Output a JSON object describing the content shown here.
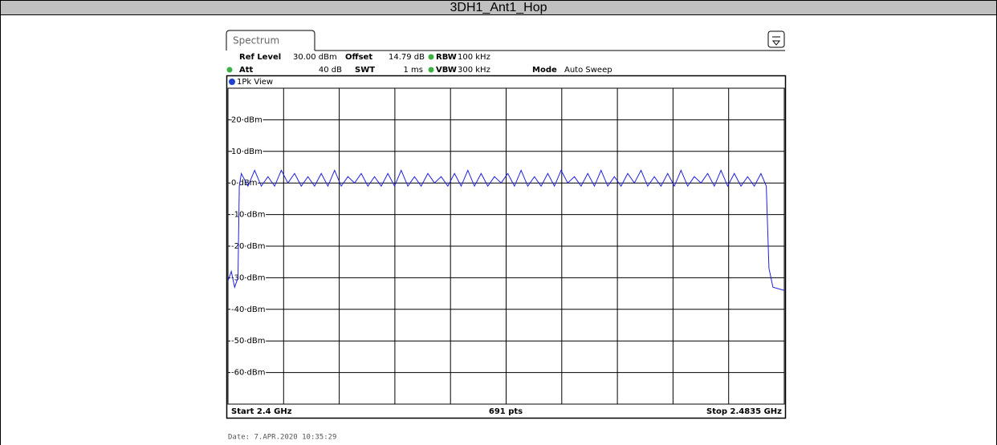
{
  "header": {
    "title": "3DH1_Ant1_Hop"
  },
  "instrument": {
    "tab": "Spectrum",
    "settings": {
      "ref_level_label": "Ref Level",
      "ref_level": "30.00 dBm",
      "offset_label": "Offset",
      "offset": "14.79 dB",
      "rbw_label": "RBW",
      "rbw": "100 kHz",
      "att_label": "Att",
      "att": "40 dB",
      "swt_label": "SWT",
      "swt": "1 ms",
      "vbw_label": "VBW",
      "vbw": "300 kHz",
      "mode_label": "Mode",
      "mode": "Auto Sweep"
    },
    "view": "1Pk View",
    "start": "Start 2.4 GHz",
    "points": "691 pts",
    "stop": "Stop 2.4835 GHz"
  },
  "chart_data": {
    "type": "line",
    "color": "#2020e0",
    "xlim": [
      2.4,
      2.4835
    ],
    "ylim": [
      -70,
      30
    ],
    "yticks": [
      {
        "value": 20,
        "label": "20 dBm"
      },
      {
        "value": 10,
        "label": "10 dBm"
      },
      {
        "value": 0,
        "label": "0 dBm"
      },
      {
        "value": -10,
        "label": "-10 dBm"
      },
      {
        "value": -20,
        "label": "-20 dBm"
      },
      {
        "value": -30,
        "label": "-30 dBm"
      },
      {
        "value": -40,
        "label": "-40 dBm"
      },
      {
        "value": -50,
        "label": "-50 dBm"
      },
      {
        "value": -60,
        "label": "-60 dBm"
      }
    ],
    "grid": true,
    "x": [
      2.4,
      2.4005,
      2.401,
      2.4015,
      2.4017,
      2.402,
      2.403,
      2.404,
      2.405,
      2.406,
      2.407,
      2.408,
      2.409,
      2.41,
      2.411,
      2.412,
      2.413,
      2.414,
      2.415,
      2.416,
      2.417,
      2.418,
      2.419,
      2.42,
      2.421,
      2.422,
      2.423,
      2.424,
      2.425,
      2.426,
      2.427,
      2.428,
      2.429,
      2.43,
      2.431,
      2.432,
      2.433,
      2.434,
      2.435,
      2.436,
      2.437,
      2.438,
      2.439,
      2.44,
      2.441,
      2.442,
      2.443,
      2.444,
      2.445,
      2.446,
      2.447,
      2.448,
      2.449,
      2.45,
      2.451,
      2.452,
      2.453,
      2.454,
      2.455,
      2.456,
      2.457,
      2.458,
      2.459,
      2.46,
      2.461,
      2.462,
      2.463,
      2.464,
      2.465,
      2.466,
      2.467,
      2.468,
      2.469,
      2.47,
      2.471,
      2.472,
      2.473,
      2.474,
      2.475,
      2.476,
      2.477,
      2.478,
      2.479,
      2.48,
      2.4808,
      2.4812,
      2.4818,
      2.4835
    ],
    "values": [
      -31,
      -28,
      -33,
      -30,
      -1,
      3,
      -1,
      4,
      -1,
      2,
      -1,
      4,
      0,
      3,
      -1,
      2,
      -1,
      3,
      -1,
      4,
      -1,
      2,
      0,
      3,
      -1,
      2,
      -1,
      3,
      -1,
      4,
      -1,
      2,
      -1,
      3,
      0,
      2,
      -1,
      3,
      -1,
      4,
      -1,
      3,
      -1,
      2,
      0,
      3,
      -1,
      4,
      -1,
      2,
      -1,
      3,
      -1,
      4,
      0,
      2,
      -1,
      3,
      -1,
      4,
      -1,
      2,
      -1,
      3,
      0,
      4,
      -1,
      2,
      -1,
      3,
      -1,
      4,
      -1,
      2,
      0,
      3,
      -1,
      4,
      -1,
      3,
      -1,
      2,
      -1,
      3,
      -1,
      -27,
      -33,
      -34
    ]
  },
  "footer": {
    "date": "Date: 7.APR.2020  10:35:29"
  }
}
